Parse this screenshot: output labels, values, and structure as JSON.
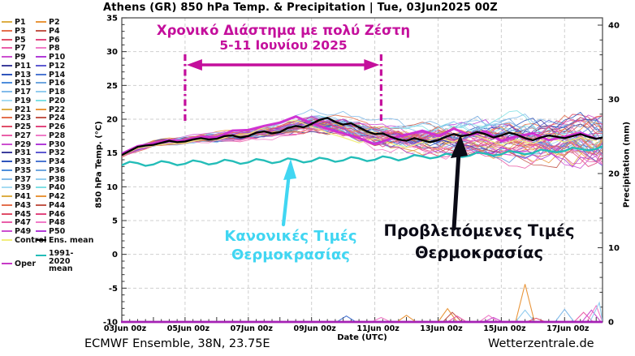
{
  "title": "Athens  (GR)  850 hPa Temp. & Precipitation | Tue, 03Jun2025 00Z",
  "footer": {
    "left": "ECMWF Ensemble, 38N, 23.75E",
    "right": "Wetterzentrale.de"
  },
  "legend": {
    "members": [
      "P1",
      "P2",
      "P3",
      "P4",
      "P5",
      "P6",
      "P7",
      "P8",
      "P9",
      "P10",
      "P11",
      "P12",
      "P13",
      "P14",
      "P15",
      "P16",
      "P17",
      "P18",
      "P19",
      "P20",
      "P21",
      "P22",
      "P23",
      "P24",
      "P25",
      "P26",
      "P27",
      "P28",
      "P29",
      "P30",
      "P31",
      "P32",
      "P33",
      "P34",
      "P35",
      "P36",
      "P37",
      "P38",
      "P39",
      "P40",
      "P41",
      "P42",
      "P43",
      "P44",
      "P45",
      "P46",
      "P47",
      "P48",
      "P49",
      "P50"
    ],
    "member_palette": [
      "#DDAE45",
      "#E9963B",
      "#E4704E",
      "#C2574A",
      "#E04E68",
      "#E2477F",
      "#EA5FA9",
      "#F07CC8",
      "#CC4FD0",
      "#B13BD8",
      "#3D3E9C",
      "#5F5BD2",
      "#2F55BC",
      "#4D78D2",
      "#4E8EDC",
      "#6FA6DF",
      "#82BBEA",
      "#93CDEF",
      "#A5DBF2",
      "#7FE0E4"
    ],
    "special": [
      {
        "label": "Control",
        "color": "#F2EE7E"
      },
      {
        "label": "Ens. mean",
        "color": "#000000"
      },
      {
        "label": "1991-2020 mean",
        "color": "#23BDB8"
      },
      {
        "label": "Oper",
        "color": "#C73AC7"
      }
    ]
  },
  "chart_data": {
    "type": "line",
    "title": "Athens (GR) 850 hPa Temp. & Precipitation | Tue, 03Jun2025 00Z",
    "xlabel": "Date (UTC)",
    "ylabel_left": "850 hPa Temp. (°C)",
    "ylabel_right": "Precipitation (mm)",
    "x_tick_labels": [
      "03Jun 00z",
      "05Jun 00z",
      "07Jun 00z",
      "09Jun 00z",
      "11Jun 00z",
      "13Jun 00z",
      "15Jun 00z",
      "17Jun 00z"
    ],
    "x_tick_days": [
      0,
      2,
      4,
      6,
      8,
      10,
      12,
      14
    ],
    "x_range_days": [
      0,
      15.2
    ],
    "temp_axis": {
      "min": -10,
      "max": 35,
      "ticks": [
        35,
        30,
        25,
        20,
        15,
        10,
        5,
        0,
        -5,
        -10
      ]
    },
    "precip_axis": {
      "min": 0,
      "max": 40,
      "ticks": [
        0,
        10,
        20,
        30,
        40
      ]
    },
    "grid": true,
    "legend_position": "left",
    "series": [
      {
        "name": "Ens. mean",
        "color": "#000000",
        "width": 2.3,
        "step_days": 0.25,
        "values": [
          14.7,
          15.3,
          15.9,
          16.1,
          16.2,
          16.5,
          16.8,
          16.6,
          16.7,
          17.0,
          17.2,
          17.0,
          17.1,
          17.5,
          17.6,
          17.3,
          17.5,
          18.0,
          18.2,
          17.9,
          18.1,
          18.7,
          19.0,
          18.8,
          19.3,
          19.9,
          20.2,
          19.6,
          19.2,
          19.4,
          18.8,
          18.2,
          17.8,
          17.9,
          17.4,
          17.0,
          16.8,
          17.2,
          16.9,
          16.6,
          16.9,
          17.4,
          17.8,
          17.5,
          17.7,
          18.1,
          17.8,
          17.3,
          17.6,
          18.0,
          17.7,
          17.2,
          16.9,
          17.3,
          17.6,
          17.4,
          17.2,
          17.5,
          17.8,
          17.4,
          17.1,
          17.3
        ]
      },
      {
        "name": "1991-2020 mean",
        "color": "#23BDB8",
        "width": 2.4,
        "step_days": 0.25,
        "values": [
          13.2,
          13.7,
          13.5,
          13.1,
          13.3,
          13.8,
          13.6,
          13.2,
          13.4,
          13.9,
          13.7,
          13.3,
          13.5,
          14.0,
          13.8,
          13.4,
          13.6,
          14.1,
          13.9,
          13.5,
          13.7,
          14.2,
          14.0,
          13.6,
          13.8,
          14.3,
          14.1,
          13.7,
          13.9,
          14.4,
          14.2,
          13.8,
          14.0,
          14.5,
          14.3,
          13.9,
          14.2,
          14.7,
          14.5,
          14.2,
          14.4,
          14.9,
          14.7,
          14.4,
          14.6,
          15.1,
          14.9,
          14.6,
          14.8,
          15.3,
          15.1,
          14.8,
          15.0,
          15.5,
          15.3,
          15.1,
          15.3,
          15.8,
          15.6,
          15.4,
          15.6,
          16.0
        ]
      },
      {
        "name": "Oper",
        "color": "#CF2BD3",
        "width": 3.0,
        "step_days": 0.5,
        "values": [
          14.9,
          16.0,
          16.4,
          16.9,
          16.8,
          17.4,
          17.3,
          18.3,
          18.4,
          19.0,
          19.5,
          20.4,
          19.4,
          18.6,
          17.9,
          17.2,
          16.3,
          17.1,
          17.7,
          18.3,
          17.5,
          18.6,
          17.6,
          18.2,
          16.8,
          17.5,
          17.9,
          16.9,
          17.4,
          18.0,
          17.1
        ]
      },
      {
        "name": "Control",
        "color": "#F2EE7E",
        "width": 1.2,
        "step_days": 0.5,
        "values": [
          14.6,
          15.7,
          16.1,
          16.4,
          16.5,
          17.0,
          16.9,
          17.6,
          17.8,
          18.8,
          19.6,
          19.8,
          18.9,
          18.0,
          17.3,
          16.5,
          17.2,
          16.4,
          15.8,
          16.6,
          17.3,
          16.6,
          17.9,
          17.1,
          16.2,
          17.0,
          16.4,
          17.2,
          16.6,
          17.3,
          16.8
        ]
      }
    ],
    "ensemble": {
      "count": 50,
      "step_days": 0.25,
      "envelope_days": [
        0,
        1,
        2,
        3,
        4,
        5,
        6,
        7,
        8,
        9,
        10,
        11,
        12,
        13,
        14,
        15,
        15.25
      ],
      "envelope_min": [
        14.2,
        15.7,
        16.0,
        16.2,
        16.4,
        16.9,
        17.2,
        16.8,
        14.9,
        14.0,
        13.7,
        13.5,
        13.0,
        12.2,
        11.6,
        11.2,
        11.2
      ],
      "envelope_max": [
        15.2,
        17.2,
        17.8,
        18.4,
        18.9,
        19.9,
        21.5,
        21.3,
        20.3,
        19.8,
        20.2,
        20.6,
        21.0,
        21.6,
        22.4,
        22.6,
        22.6
      ]
    },
    "precip_events": [
      {
        "day": 7.1,
        "mm": 0.8,
        "color": "#4D78D2"
      },
      {
        "day": 8.2,
        "mm": 0.6,
        "color": "#F07CC8"
      },
      {
        "day": 9.0,
        "mm": 0.9,
        "color": "#E9963B"
      },
      {
        "day": 10.3,
        "mm": 1.8,
        "color": "#E9963B"
      },
      {
        "day": 10.45,
        "mm": 1.3,
        "color": "#C2574A"
      },
      {
        "day": 10.6,
        "mm": 0.8,
        "color": "#EA5FA9"
      },
      {
        "day": 11.6,
        "mm": 0.9,
        "color": "#F07CC8"
      },
      {
        "day": 11.75,
        "mm": 0.6,
        "color": "#CC4FD0"
      },
      {
        "day": 12.75,
        "mm": 5.1,
        "color": "#E9963B"
      },
      {
        "day": 12.75,
        "mm": 1.6,
        "color": "#93CDEF"
      },
      {
        "day": 13.1,
        "mm": 0.5,
        "color": "#E04E68"
      },
      {
        "day": 14.0,
        "mm": 1.7,
        "color": "#82BBEA"
      },
      {
        "day": 14.6,
        "mm": 1.3,
        "color": "#EA5FA9"
      },
      {
        "day": 14.85,
        "mm": 1.6,
        "color": "#CC4FD0"
      },
      {
        "day": 15.0,
        "mm": 2.2,
        "color": "#F07CC8"
      },
      {
        "day": 15.1,
        "mm": 2.6,
        "color": "#93CDEF"
      }
    ],
    "oper_precip_zero_line_color": "#A521B5"
  },
  "annotations": {
    "heat_period": {
      "line1": "Χρονικό Διάστημα με πολύ Ζέστη",
      "line2": "5-11 Ιουνίου 2025",
      "color": "#C40F9C",
      "span_days": [
        2,
        8.2
      ]
    },
    "normal_values": {
      "line1": "Κανονικές Τιμές",
      "line2": "Θερμοκρασίας",
      "color": "#41D6F2"
    },
    "forecast_values": {
      "line1": "Προβλεπόμενες Τιμές",
      "line2": "Θερμοκρασίας",
      "color": "#0B0B16"
    }
  }
}
